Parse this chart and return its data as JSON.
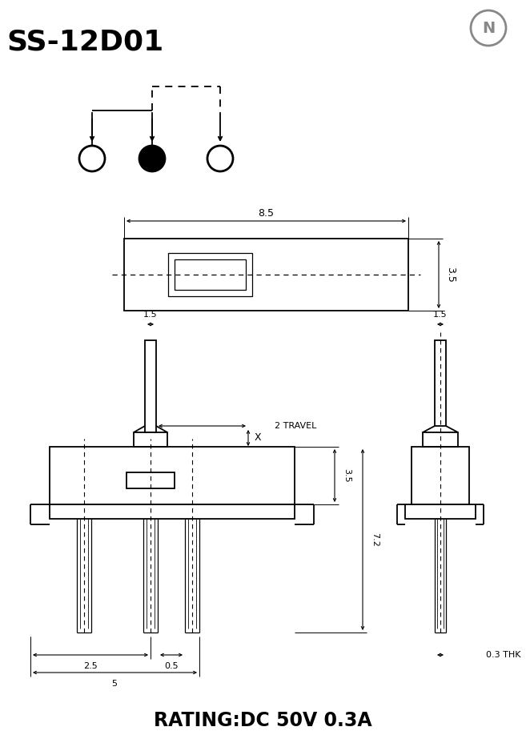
{
  "title": "SS-12D01",
  "rating_text": "RATING:DC 50V 0.3A",
  "bg_color": "#ffffff",
  "line_color": "#000000",
  "dim_85": "8.5",
  "dim_35_top": "3.5",
  "dim_15_left": "1.5",
  "dim_15_right": "1.5",
  "dim_2travel": "2 TRAVEL",
  "dim_x": "X",
  "dim_35_side": "3.5",
  "dim_72": "7.2",
  "dim_25": "2.5",
  "dim_05": "0.5",
  "dim_5": "5",
  "dim_03thk": "0.3 THK"
}
